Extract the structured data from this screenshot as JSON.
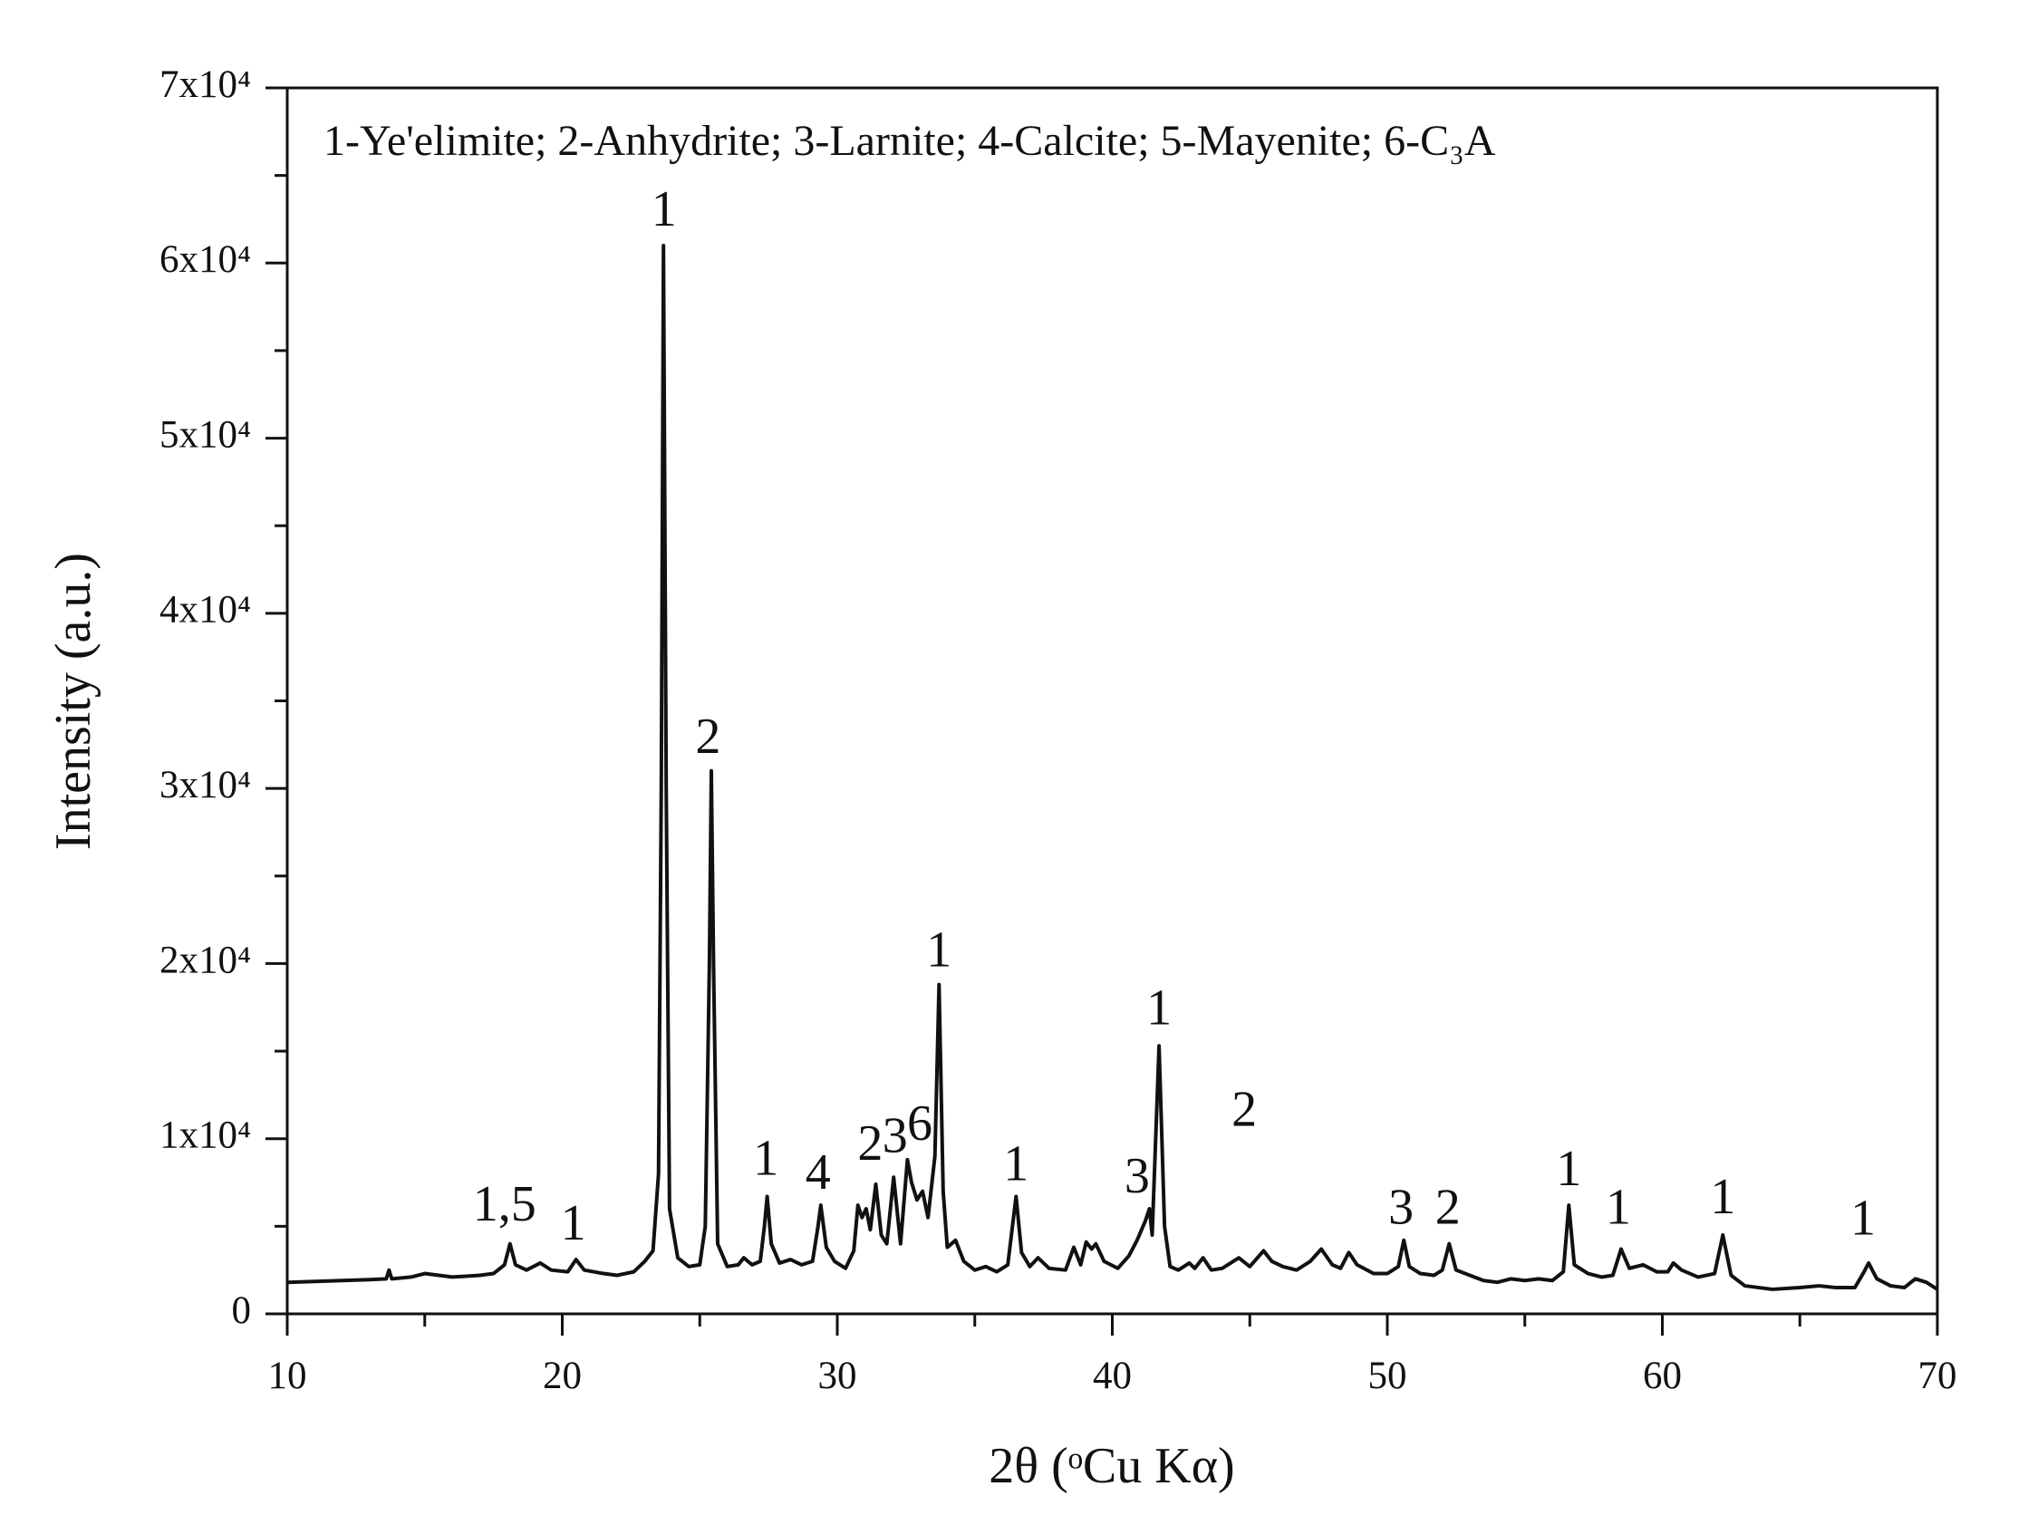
{
  "chart_data": {
    "type": "line",
    "legend_text": "1-Ye'elimite; 2-Anhydrite; 3-Larnite; 4-Calcite; 5-Mayenite; 6-C₃A",
    "xlabel": "2θ (ᵒCu Kα)",
    "ylabel": "Intensity (a.u.)",
    "xlim": [
      10,
      70
    ],
    "ylim": [
      0,
      70000
    ],
    "xticks": [
      10,
      20,
      30,
      40,
      50,
      60,
      70
    ],
    "xminorticks": [
      15,
      25,
      35,
      45,
      55,
      65
    ],
    "yticks": [
      0,
      {
        "value": 10000,
        "label": "1x10⁴"
      },
      {
        "value": 20000,
        "label": "2x10⁴"
      },
      {
        "value": 30000,
        "label": "3x10⁴"
      },
      {
        "value": 40000,
        "label": "4x10⁴"
      },
      {
        "value": 50000,
        "label": "5x10⁴"
      },
      {
        "value": 60000,
        "label": "6x10⁴"
      },
      {
        "value": 70000,
        "label": "7x10⁴"
      }
    ],
    "yminorticks": [
      5000,
      15000,
      25000,
      35000,
      45000,
      55000,
      65000
    ],
    "color": "#111111",
    "x": [
      10,
      11,
      12,
      13,
      13.6,
      13.7,
      13.8,
      14.5,
      15,
      16,
      17,
      17.5,
      17.9,
      18.1,
      18.3,
      18.7,
      19.2,
      19.6,
      20.2,
      20.5,
      20.8,
      21.5,
      22,
      22.6,
      23,
      23.3,
      23.5,
      23.6,
      23.68,
      23.78,
      23.9,
      24.2,
      24.6,
      25,
      25.2,
      25.35,
      25.42,
      25.5,
      25.65,
      26,
      26.4,
      26.6,
      26.9,
      27.2,
      27.35,
      27.45,
      27.6,
      27.9,
      28.3,
      28.7,
      29.1,
      29.3,
      29.4,
      29.6,
      29.9,
      30.3,
      30.6,
      30.75,
      30.9,
      31.05,
      31.2,
      31.4,
      31.6,
      31.8,
      32.05,
      32.3,
      32.55,
      32.7,
      32.9,
      33.1,
      33.3,
      33.55,
      33.7,
      33.85,
      34,
      34.3,
      34.6,
      35,
      35.4,
      35.8,
      36.2,
      36.5,
      36.7,
      37,
      37.3,
      37.7,
      38.3,
      38.6,
      38.85,
      39.05,
      39.25,
      39.4,
      39.7,
      40.2,
      40.6,
      40.9,
      41.2,
      41.35,
      41.45,
      41.7,
      41.9,
      42.1,
      42.4,
      42.8,
      43,
      43.3,
      43.6,
      44,
      44.6,
      45,
      45.5,
      45.8,
      46.2,
      46.7,
      47.2,
      47.6,
      48,
      48.3,
      48.6,
      48.9,
      49.5,
      50,
      50.4,
      50.6,
      50.8,
      51.2,
      51.7,
      52,
      52.25,
      52.5,
      53,
      53.5,
      54,
      54.5,
      55,
      55.5,
      56,
      56.4,
      56.6,
      56.8,
      57.3,
      57.8,
      58.2,
      58.5,
      58.8,
      59.3,
      59.8,
      60.2,
      60.4,
      60.7,
      61.3,
      61.9,
      62.2,
      62.5,
      63,
      64,
      65,
      65.7,
      66.3,
      67,
      67.3,
      67.5,
      67.8,
      68.3,
      68.8,
      69.2,
      69.6,
      70
    ],
    "values": [
      1800,
      1850,
      1900,
      1950,
      2000,
      2500,
      2000,
      2100,
      2300,
      2100,
      2200,
      2300,
      2800,
      4000,
      2800,
      2500,
      2900,
      2500,
      2400,
      3100,
      2500,
      2300,
      2200,
      2400,
      3000,
      3600,
      8000,
      30000,
      61000,
      30000,
      6000,
      3200,
      2700,
      2800,
      5000,
      20000,
      31000,
      20000,
      4000,
      2700,
      2800,
      3200,
      2800,
      3000,
      5000,
      6700,
      4000,
      2900,
      3100,
      2800,
      3000,
      5000,
      6200,
      3800,
      3000,
      2600,
      3600,
      6200,
      5500,
      6000,
      4800,
      7400,
      4500,
      4000,
      7800,
      4000,
      8800,
      7500,
      6500,
      7000,
      5500,
      9000,
      18800,
      7000,
      3800,
      4200,
      3000,
      2500,
      2700,
      2400,
      2800,
      6700,
      3500,
      2700,
      3200,
      2600,
      2500,
      3800,
      2800,
      4100,
      3700,
      4000,
      3000,
      2600,
      3300,
      4200,
      5300,
      6000,
      4500,
      15300,
      5000,
      2700,
      2500,
      2900,
      2600,
      3200,
      2500,
      2600,
      3200,
      2700,
      3600,
      3000,
      2700,
      2500,
      3000,
      3700,
      2800,
      2600,
      3500,
      2800,
      2300,
      2300,
      2700,
      4200,
      2700,
      2300,
      2200,
      2500,
      4000,
      2500,
      2200,
      1900,
      1800,
      2000,
      1900,
      2000,
      1900,
      2400,
      6200,
      2800,
      2300,
      2100,
      2200,
      3700,
      2600,
      2800,
      2400,
      2400,
      2900,
      2500,
      2100,
      2300,
      4500,
      2200,
      1600,
      1400,
      1500,
      1600,
      1500,
      1500,
      2300,
      2900,
      2000,
      1600,
      1500,
      2000,
      1800,
      1400
    ],
    "annotations": [
      {
        "text": "1,5",
        "x": 17.9,
        "y": 6000
      },
      {
        "text": "1",
        "x": 20.4,
        "y": 4900
      },
      {
        "text": "1",
        "x": 23.7,
        "y": 62800
      },
      {
        "text": "2",
        "x": 25.3,
        "y": 32700
      },
      {
        "text": "1",
        "x": 27.4,
        "y": 8600
      },
      {
        "text": "4",
        "x": 29.3,
        "y": 7800
      },
      {
        "text": "2",
        "x": 31.2,
        "y": 9450
      },
      {
        "text": "3",
        "x": 32.1,
        "y": 9900
      },
      {
        "text": "6",
        "x": 33.0,
        "y": 10600
      },
      {
        "text": "1",
        "x": 33.7,
        "y": 20500
      },
      {
        "text": "1",
        "x": 36.5,
        "y": 8300
      },
      {
        "text": "3",
        "x": 40.9,
        "y": 7600
      },
      {
        "text": "1",
        "x": 41.7,
        "y": 17200
      },
      {
        "text": "2",
        "x": 44.8,
        "y": 11400
      },
      {
        "text": "3",
        "x": 50.5,
        "y": 5800
      },
      {
        "text": "2",
        "x": 52.2,
        "y": 5800
      },
      {
        "text": "1",
        "x": 56.6,
        "y": 8000
      },
      {
        "text": "1",
        "x": 58.4,
        "y": 5800
      },
      {
        "text": "1",
        "x": 62.2,
        "y": 6400
      },
      {
        "text": "1",
        "x": 67.3,
        "y": 5200
      }
    ]
  }
}
